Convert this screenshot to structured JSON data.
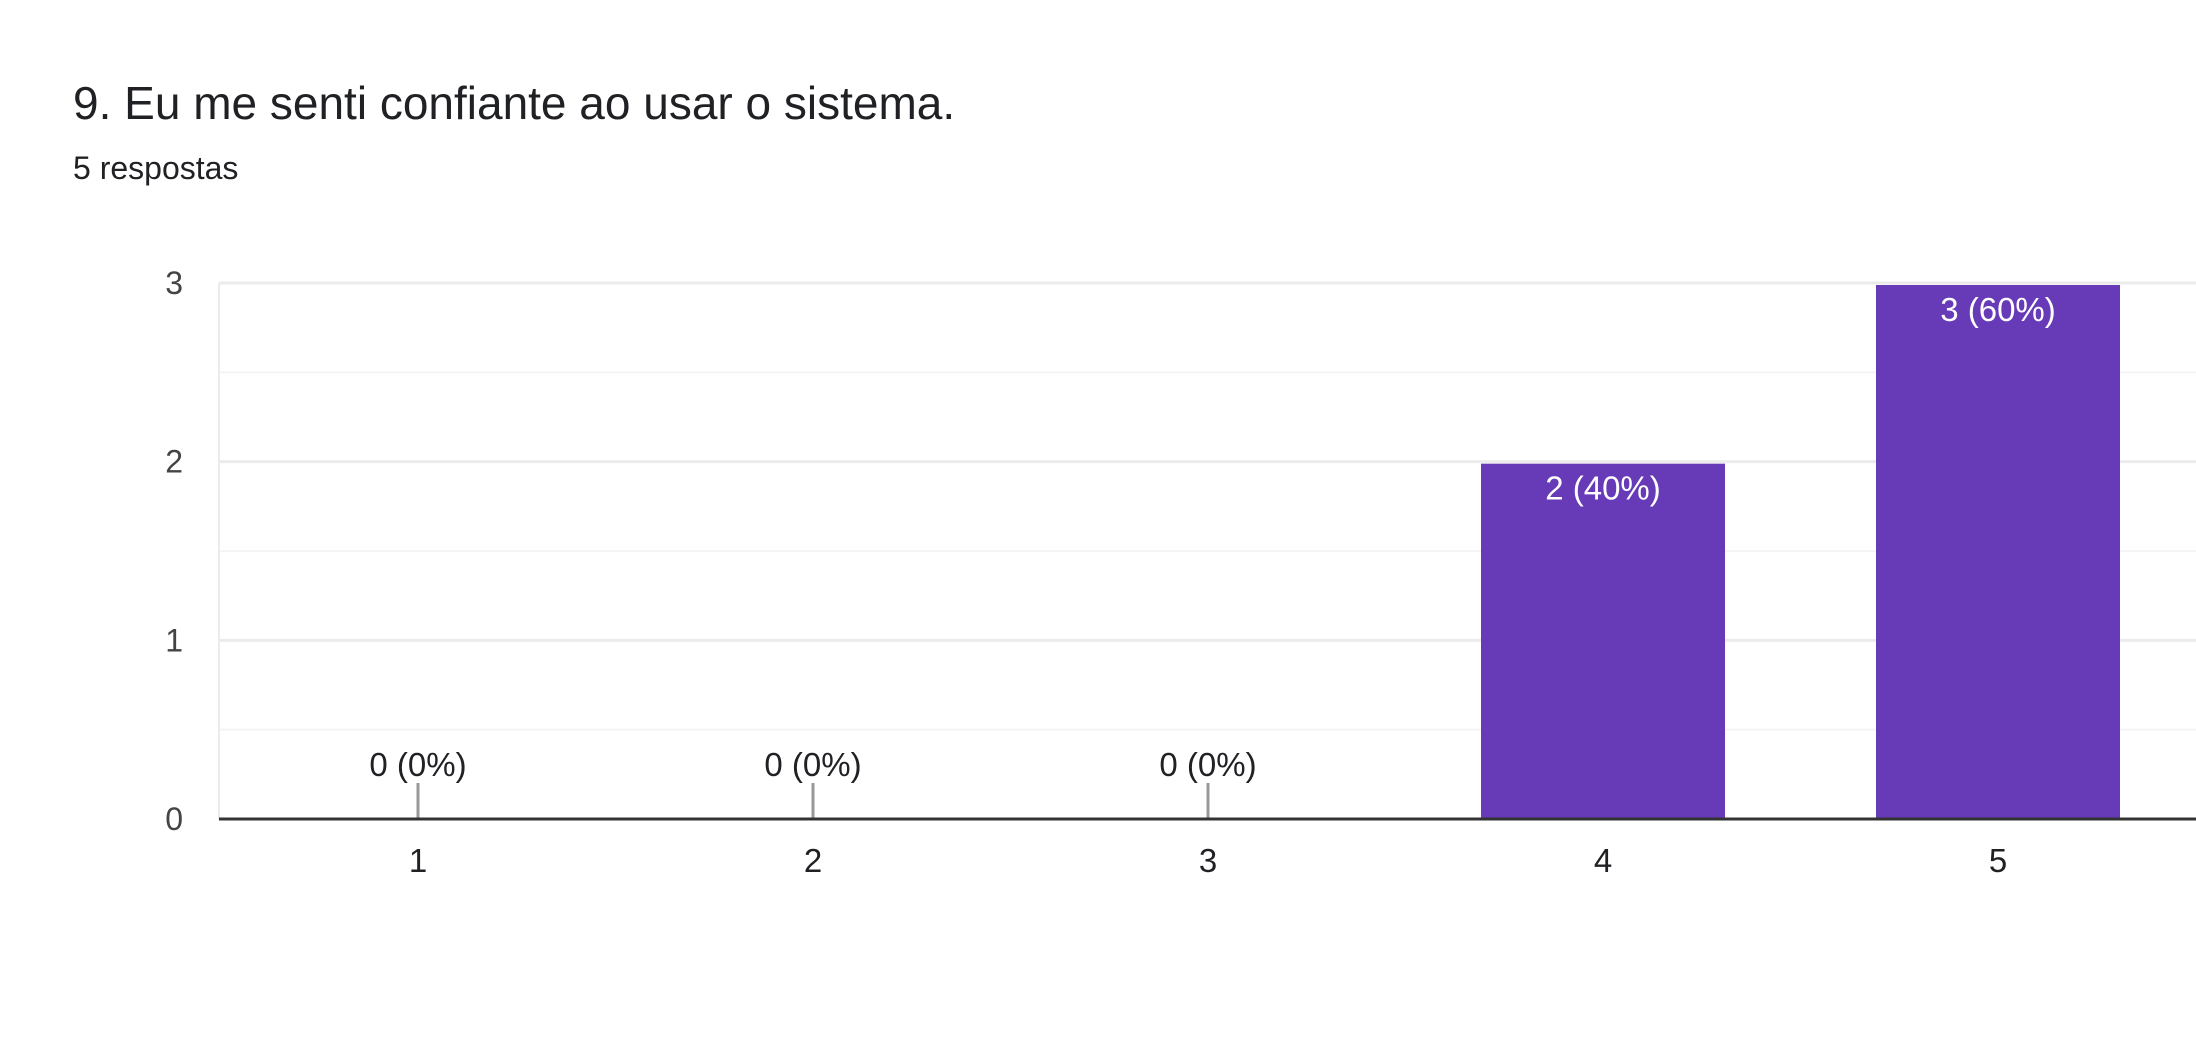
{
  "question": {
    "title": "9. Eu me senti confiante ao usar o sistema.",
    "response_count": "5 respostas"
  },
  "colors": {
    "bar": "#673ab7",
    "text": "#202124",
    "axis_text": "#444444",
    "grid_major": "#ebebeb",
    "grid_minor": "#f5f5f5",
    "baseline": "#333333",
    "stub": "#999999"
  },
  "chart_data": {
    "type": "bar",
    "categories": [
      "1",
      "2",
      "3",
      "4",
      "5"
    ],
    "values": [
      0,
      0,
      0,
      2,
      3
    ],
    "data_labels": [
      "0 (0%)",
      "0 (0%)",
      "0 (0%)",
      "2 (40%)",
      "3 (60%)"
    ],
    "y_ticks": [
      "0",
      "1",
      "2",
      "3"
    ],
    "ylim": [
      0,
      3
    ],
    "grid": true,
    "xlabel": "",
    "ylabel": ""
  }
}
